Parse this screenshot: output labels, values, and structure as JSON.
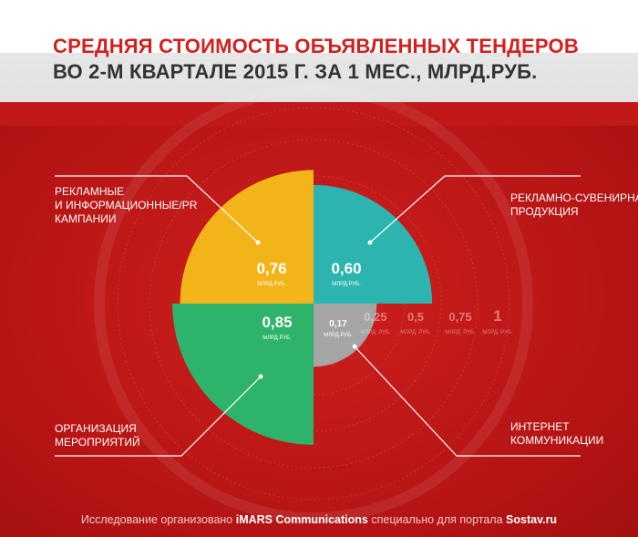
{
  "title": {
    "line1": "СРЕДНЯЯ СТОИМОСТЬ ОБЪЯВЛЕННЫХ ТЕНДЕРОВ",
    "line2": "ВО 2-М КВАРТАЛЕ  2015 Г. ЗА 1 МЕС., МЛРД.РУБ."
  },
  "chart_data": {
    "type": "polar-area",
    "unit": "МЛРД.РУБ.",
    "scale_max": 1,
    "scale_ticks": [
      {
        "value": 0.25,
        "label": "0,25"
      },
      {
        "value": 0.5,
        "label": "0,5"
      },
      {
        "value": 0.75,
        "label": "0,75"
      },
      {
        "value": 1,
        "label": "1"
      }
    ],
    "segments": [
      {
        "name": "РЕКЛАМНЫЕ\nИ ИНФОРМАЦИОННЫЕ/PR\nКАМПАНИИ",
        "value": 0.76,
        "value_label": "0,76",
        "quadrant": "top-left",
        "color": "#f2b419"
      },
      {
        "name": "РЕКЛАМНО-СУВЕНИРНАЯ\nПРОДУКЦИЯ",
        "value": 0.6,
        "value_label": "0,60",
        "quadrant": "top-right",
        "color": "#2cb5b0"
      },
      {
        "name": "ОРГАНИЗАЦИЯ\nМЕРОПРИЯТИЙ",
        "value": 0.85,
        "value_label": "0,85",
        "quadrant": "bottom-left",
        "color": "#2db36a"
      },
      {
        "name": "ИНТЕРНЕТ\nКОММУНИКАЦИИ",
        "value": 0.17,
        "value_label": "0,17",
        "quadrant": "bottom-right",
        "color": "#a5a5a5"
      }
    ]
  },
  "footer": {
    "prefix": "Исследование организовано ",
    "org": "iMARS Communications",
    "middle": " специально для портала ",
    "portal": "Sostav.ru"
  }
}
